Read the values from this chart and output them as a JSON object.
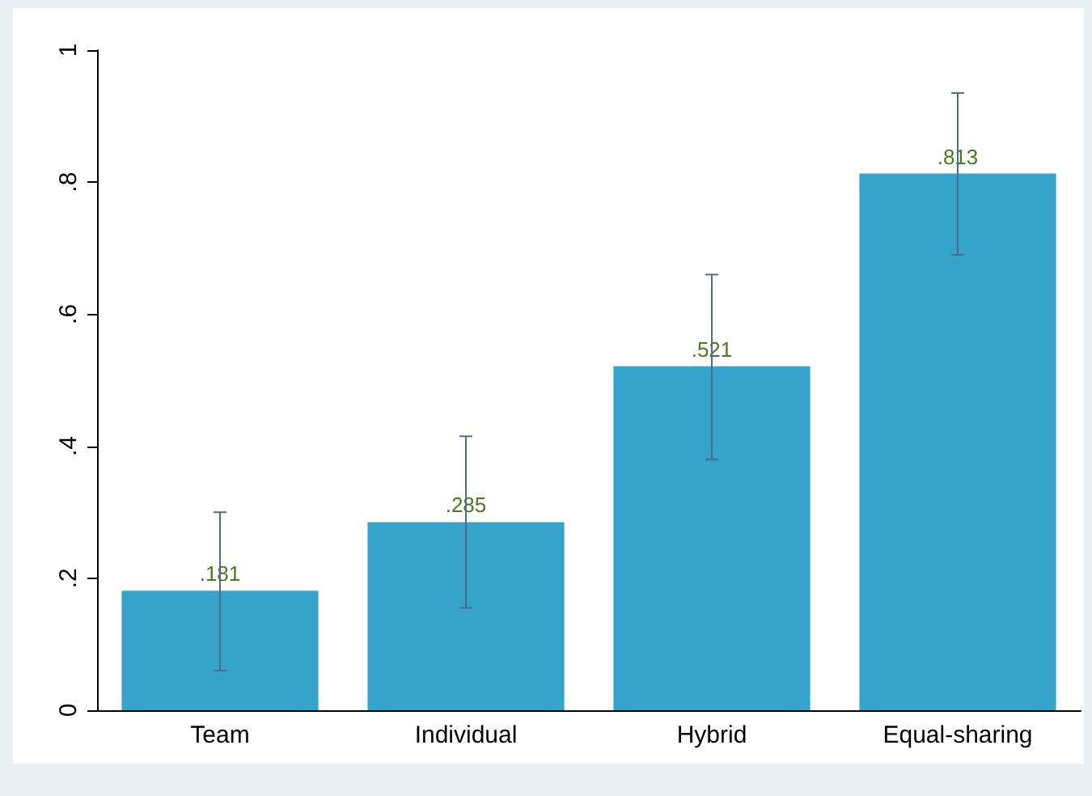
{
  "chart_data": {
    "type": "bar",
    "categories": [
      "Team",
      "Individual",
      "Hybrid",
      "Equal-sharing"
    ],
    "values": [
      0.181,
      0.285,
      0.521,
      0.813
    ],
    "value_labels": [
      ".181",
      ".285",
      ".521",
      ".813"
    ],
    "errors": [
      [
        0.06,
        0.3
      ],
      [
        0.155,
        0.415
      ],
      [
        0.38,
        0.66
      ],
      [
        0.69,
        0.935
      ]
    ],
    "color": "#36a3cb",
    "ylim": [
      0,
      1
    ],
    "yticks": [
      0,
      {
        "value": 0.2,
        "label": ".2"
      },
      {
        "value": 0.4,
        "label": ".4"
      },
      {
        "value": 0.6,
        "label": ".6"
      },
      {
        "value": 0.8,
        "label": ".8"
      },
      1
    ]
  }
}
